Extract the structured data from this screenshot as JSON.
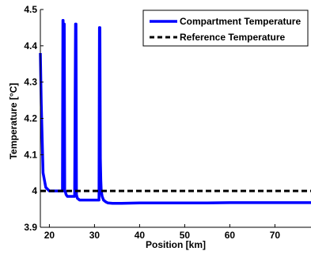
{
  "chart_data": {
    "type": "line",
    "title": "",
    "xlabel": "Position [km]",
    "ylabel": "Temperature [°C]",
    "xlim": [
      18,
      78
    ],
    "ylim": [
      3.9,
      4.5
    ],
    "xticks": [
      20,
      30,
      40,
      50,
      60,
      70
    ],
    "yticks": [
      3.9,
      4,
      4.1,
      4.2,
      4.3,
      4.4,
      4.5
    ],
    "ytick_labels": [
      "3.9",
      "4",
      "4.1",
      "4.2",
      "4.3",
      "4.4",
      "4.5"
    ],
    "grid": false,
    "legend_position": "top-right",
    "series": [
      {
        "name": "Compartment Temperature",
        "color": "#0000ff",
        "style": "solid",
        "x": [
          18,
          18.2,
          18.6,
          19.2,
          20,
          21,
          22.9,
          23.0,
          23.05,
          23.1,
          23.2,
          23.3,
          23.4,
          23.5,
          23.6,
          23.7,
          24.0,
          24.5,
          25.0,
          25.6,
          25.8,
          25.9,
          26.0,
          26.1,
          26.2,
          26.4,
          26.7,
          27.2,
          28.0,
          30.0,
          31.0,
          31.1,
          31.2,
          31.3,
          31.4,
          31.5,
          31.7,
          32.0,
          32.5,
          33.0,
          34.0,
          36.0,
          40.0,
          45.0,
          50.0,
          55.0,
          60.0,
          65.0,
          70.0,
          75.0,
          78.0
        ],
        "y": [
          4.38,
          4.24,
          4.05,
          4.01,
          4.0,
          4.0,
          4.0,
          4.47,
          4.47,
          4.0,
          4.46,
          4.46,
          4.0,
          4.0,
          3.995,
          3.99,
          3.985,
          3.985,
          3.985,
          3.985,
          4.46,
          4.46,
          3.99,
          3.985,
          3.98,
          3.978,
          3.975,
          3.975,
          3.975,
          3.975,
          3.975,
          4.45,
          4.45,
          4.09,
          4.03,
          4.0,
          3.985,
          3.975,
          3.97,
          3.967,
          3.966,
          3.966,
          3.967,
          3.967,
          3.967,
          3.967,
          3.968,
          3.968,
          3.968,
          3.968,
          3.968
        ]
      },
      {
        "name": "Reference Temperature",
        "color": "#000000",
        "style": "dashed",
        "x": [
          18,
          78
        ],
        "y": [
          4.0,
          4.0
        ]
      }
    ]
  }
}
